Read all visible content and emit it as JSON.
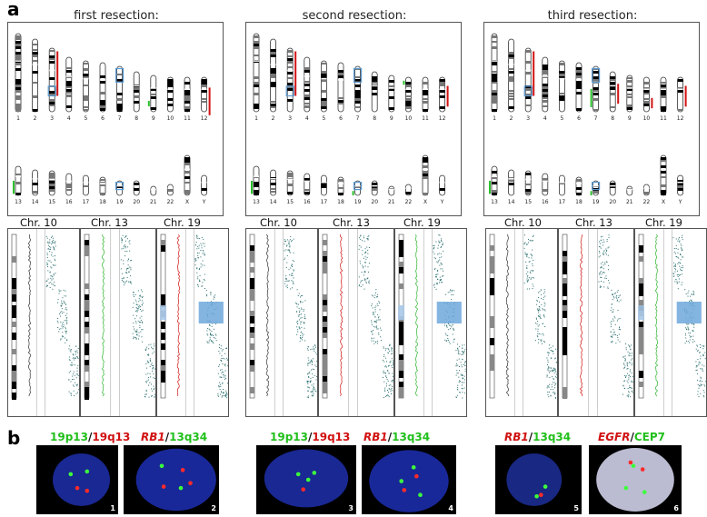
{
  "panels": {
    "a": "a",
    "b": "b"
  },
  "resections": [
    {
      "title": "first resection:",
      "chr_labels": [
        "Chr. 10",
        "Chr. 13",
        "Chr. 19"
      ]
    },
    {
      "title": "second resection:",
      "chr_labels": [
        "Chr. 10",
        "Chr. 13",
        "Chr. 19"
      ]
    },
    {
      "title": "third resection:",
      "chr_labels": [
        "Chr. 10",
        "Chr. 13",
        "Chr. 19"
      ]
    }
  ],
  "karyotype": {
    "row1": [
      "1",
      "2",
      "3",
      "4",
      "5",
      "6",
      "7",
      "8",
      "9",
      "10",
      "11",
      "12"
    ],
    "row2": [
      "13",
      "14",
      "15",
      "16",
      "17",
      "18",
      "19",
      "20",
      "21",
      "22",
      "X",
      "Y"
    ]
  },
  "fish": [
    {
      "parts": [
        {
          "t": "19p13",
          "c": "g",
          "i": false
        },
        {
          "t": "/",
          "c": "k",
          "i": false
        },
        {
          "t": "19q13",
          "c": "r",
          "i": false
        }
      ],
      "num": "1",
      "bg": "#1a2a9a"
    },
    {
      "parts": [
        {
          "t": "RB1",
          "c": "r",
          "i": true
        },
        {
          "t": "/",
          "c": "k",
          "i": false
        },
        {
          "t": "13q34",
          "c": "g",
          "i": false
        }
      ],
      "num": "2",
      "bg": "#1a2aa0"
    },
    {
      "parts": [
        {
          "t": "19p13",
          "c": "g",
          "i": false
        },
        {
          "t": "/",
          "c": "k",
          "i": false
        },
        {
          "t": "19q13",
          "c": "r",
          "i": false
        }
      ],
      "num": "3",
      "bg": "#1a2a9a"
    },
    {
      "parts": [
        {
          "t": "RB1",
          "c": "r",
          "i": true
        },
        {
          "t": "/",
          "c": "k",
          "i": false
        },
        {
          "t": "13q34",
          "c": "g",
          "i": false
        }
      ],
      "num": "4",
      "bg": "#1a2aa0"
    },
    {
      "parts": [
        {
          "t": "RB1",
          "c": "r",
          "i": true
        },
        {
          "t": "/",
          "c": "k",
          "i": false
        },
        {
          "t": "13q34",
          "c": "g",
          "i": false
        }
      ],
      "num": "5",
      "bg": "#1a2a8a"
    },
    {
      "parts": [
        {
          "t": "EGFR",
          "c": "r",
          "i": true
        },
        {
          "t": "/",
          "c": "k",
          "i": false
        },
        {
          "t": "CEP7",
          "c": "g",
          "i": false
        }
      ],
      "num": "6",
      "bg": "#c5c5dc"
    }
  ]
}
